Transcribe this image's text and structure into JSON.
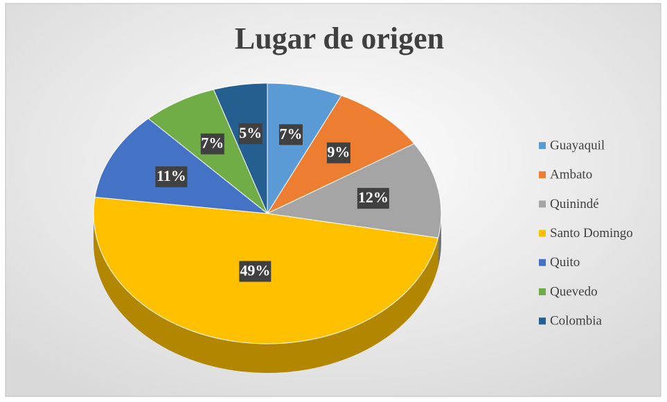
{
  "chart_data": {
    "type": "pie",
    "title": "Lugar de origen",
    "categories": [
      "Guayaquil",
      "Ambato",
      "Quinindé",
      "Santo Domingo",
      "Quito",
      "Quevedo",
      "Colombia"
    ],
    "values": [
      7,
      9,
      12,
      49,
      11,
      7,
      5
    ],
    "value_labels": [
      "7%",
      "9%",
      "12%",
      "49%",
      "11%",
      "7%",
      "5%"
    ],
    "colors": [
      "#5b9bd5",
      "#ed7d31",
      "#a5a5a5",
      "#ffc000",
      "#4472c4",
      "#70ad47",
      "#255e91"
    ],
    "legend": "right"
  }
}
